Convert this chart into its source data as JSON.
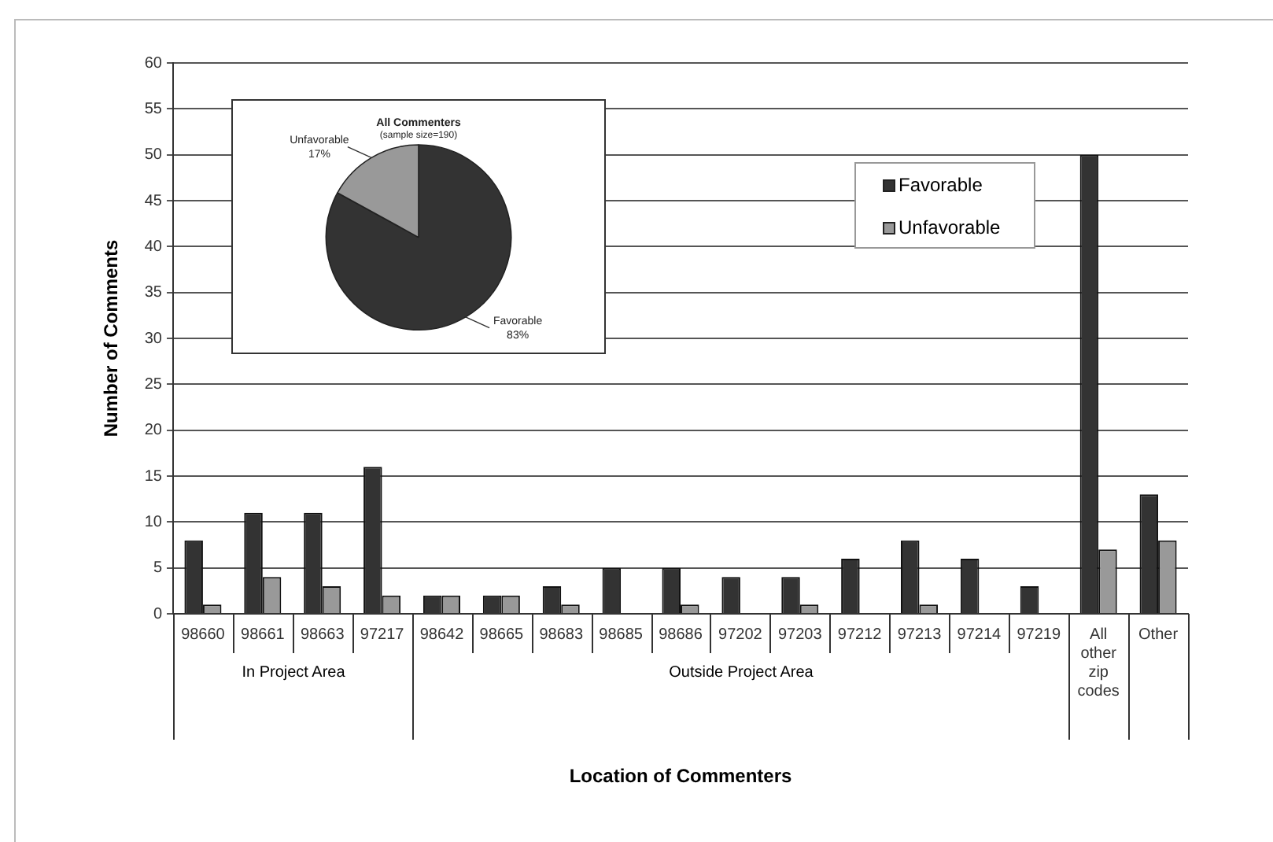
{
  "chart_data": [
    {
      "type": "bar",
      "xlabel": "Location of Commenters",
      "ylabel": "Number of Comments",
      "categories": [
        "98660",
        "98661",
        "98663",
        "97217",
        "98642",
        "98665",
        "98683",
        "98685",
        "98686",
        "97202",
        "97203",
        "97212",
        "97213",
        "97214",
        "97219",
        "All other zip codes",
        "Other"
      ],
      "series": [
        {
          "name": "Favorable",
          "color": "#333333",
          "values": [
            8,
            11,
            11,
            16,
            2,
            2,
            3,
            5,
            5,
            4,
            4,
            6,
            8,
            6,
            3,
            50,
            13
          ]
        },
        {
          "name": "Unfavorable",
          "color": "#999999",
          "values": [
            1,
            4,
            3,
            2,
            2,
            2,
            1,
            0,
            1,
            0,
            1,
            0,
            1,
            0,
            0,
            7,
            8
          ]
        }
      ],
      "ylim": [
        0,
        60
      ],
      "yticks": [
        0,
        5,
        10,
        15,
        20,
        25,
        30,
        35,
        40,
        45,
        50,
        55,
        60
      ],
      "grid": "y",
      "legend": "top right",
      "annotations": [
        "In Project Area",
        "Outside Project Area"
      ]
    },
    {
      "type": "pie",
      "title": "All Commenters",
      "subtitle": "(sample size=190)",
      "categories": [
        "Favorable",
        "Unfavorable"
      ],
      "values": [
        83,
        17
      ],
      "colors": [
        "#333333",
        "#999999"
      ],
      "value_labels": [
        "83%",
        "17%"
      ]
    }
  ]
}
